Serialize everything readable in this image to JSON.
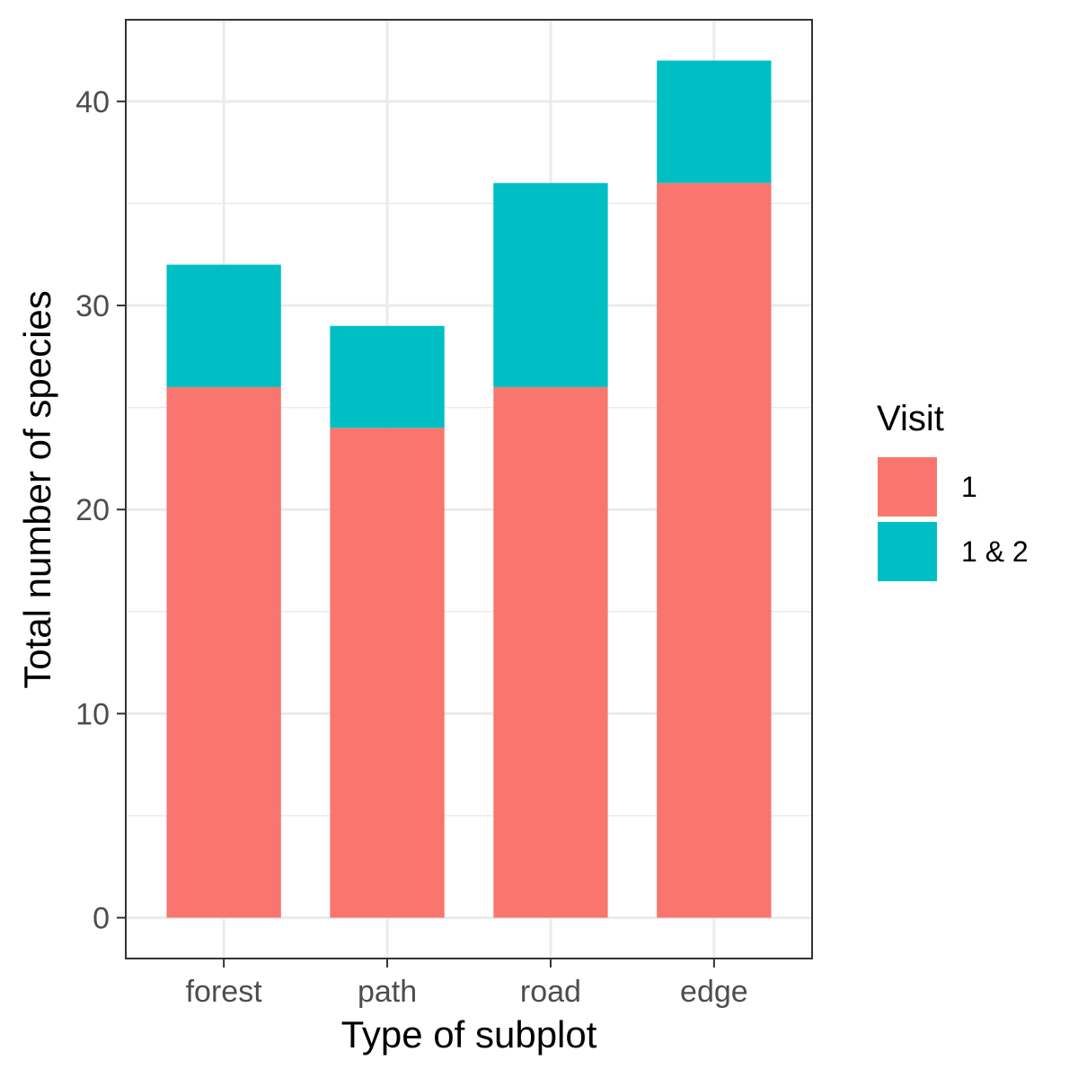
{
  "chart_data": {
    "type": "bar",
    "stacked": true,
    "categories": [
      "forest",
      "path",
      "road",
      "edge"
    ],
    "series": [
      {
        "name": "1",
        "values": [
          26,
          24,
          26,
          36
        ],
        "color": "#F8766D"
      },
      {
        "name": "1 & 2",
        "values": [
          6,
          5,
          10,
          6
        ],
        "color": "#00BFC4"
      }
    ],
    "xlabel": "Type of subplot",
    "ylabel": "Total number of species",
    "ylim": [
      -2,
      44
    ],
    "yticks": [
      0,
      10,
      20,
      30,
      40
    ],
    "grid": true,
    "legend": {
      "title": "Visit",
      "position": "right"
    }
  }
}
